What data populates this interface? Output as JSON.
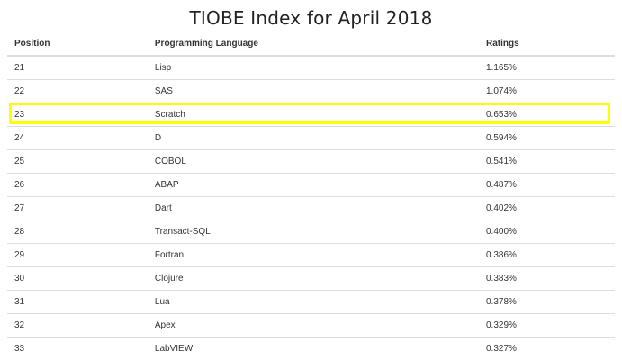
{
  "title": "TIOBE Index for April 2018",
  "table": {
    "headers": {
      "position": "Position",
      "language": "Programming Language",
      "ratings": "Ratings"
    },
    "rows": [
      {
        "position": "21",
        "language": "Lisp",
        "rating": "1.165%"
      },
      {
        "position": "22",
        "language": "SAS",
        "rating": "1.074%"
      },
      {
        "position": "23",
        "language": "Scratch",
        "rating": "0.653%"
      },
      {
        "position": "24",
        "language": "D",
        "rating": "0.594%"
      },
      {
        "position": "25",
        "language": "COBOL",
        "rating": "0.541%"
      },
      {
        "position": "26",
        "language": "ABAP",
        "rating": "0.487%"
      },
      {
        "position": "27",
        "language": "Dart",
        "rating": "0.402%"
      },
      {
        "position": "28",
        "language": "Transact-SQL",
        "rating": "0.400%"
      },
      {
        "position": "29",
        "language": "Fortran",
        "rating": "0.386%"
      },
      {
        "position": "30",
        "language": "Clojure",
        "rating": "0.383%"
      },
      {
        "position": "31",
        "language": "Lua",
        "rating": "0.378%"
      },
      {
        "position": "32",
        "language": "Apex",
        "rating": "0.329%"
      },
      {
        "position": "33",
        "language": "LabVIEW",
        "rating": "0.327%"
      }
    ]
  },
  "highlight": {
    "row_position": "23",
    "color": "#ffff00"
  }
}
